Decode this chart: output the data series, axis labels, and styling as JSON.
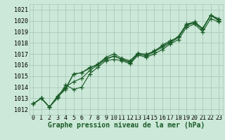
{
  "xlabel": "Graphe pression niveau de la mer (hPa)",
  "bg_color": "#cce8d8",
  "grid_color": "#aacaba",
  "line_color": "#1a5c28",
  "x": [
    0,
    1,
    2,
    3,
    4,
    5,
    6,
    7,
    8,
    9,
    10,
    11,
    12,
    13,
    14,
    15,
    16,
    17,
    18,
    19,
    20,
    21,
    22,
    23
  ],
  "series": [
    [
      1012.5,
      1013.0,
      1012.2,
      1013.1,
      1013.8,
      1015.2,
      1015.3,
      1015.8,
      1016.0,
      1016.6,
      1016.8,
      1016.5,
      1016.2,
      1017.0,
      1016.8,
      1017.2,
      1017.6,
      1018.0,
      1018.5,
      1019.6,
      1019.8,
      1019.2,
      1020.5,
      1020.0
    ],
    [
      1012.5,
      1013.0,
      1012.2,
      1013.0,
      1014.2,
      1013.8,
      1014.0,
      1015.2,
      1015.8,
      1016.4,
      1016.5,
      1016.4,
      1016.1,
      1016.9,
      1016.7,
      1017.0,
      1017.4,
      1017.9,
      1018.3,
      1019.4,
      1019.7,
      1019.0,
      1020.2,
      1019.9
    ],
    [
      1012.5,
      1013.0,
      1012.2,
      1013.2,
      1014.0,
      1014.5,
      1014.8,
      1015.5,
      1016.0,
      1016.5,
      1016.8,
      1016.5,
      1016.3,
      1017.0,
      1017.0,
      1017.2,
      1017.8,
      1018.2,
      1018.5,
      1019.6,
      1019.9,
      1019.3,
      1020.5,
      1020.2
    ],
    [
      1012.5,
      1013.0,
      1012.2,
      1013.1,
      1013.9,
      1015.2,
      1015.3,
      1015.7,
      1016.1,
      1016.7,
      1017.0,
      1016.6,
      1016.4,
      1017.1,
      1016.9,
      1017.3,
      1017.7,
      1018.1,
      1018.6,
      1019.7,
      1019.9,
      1019.3,
      1020.5,
      1020.1
    ]
  ],
  "ylim": [
    1011.5,
    1021.5
  ],
  "yticks": [
    1012,
    1013,
    1014,
    1015,
    1016,
    1017,
    1018,
    1019,
    1020,
    1021
  ],
  "xticks": [
    0,
    1,
    2,
    3,
    4,
    5,
    6,
    7,
    8,
    9,
    10,
    11,
    12,
    13,
    14,
    15,
    16,
    17,
    18,
    19,
    20,
    21,
    22,
    23
  ],
  "marker": "+",
  "marker_size": 4,
  "linewidth": 0.8,
  "font_size_axis": 6,
  "font_size_label": 7
}
